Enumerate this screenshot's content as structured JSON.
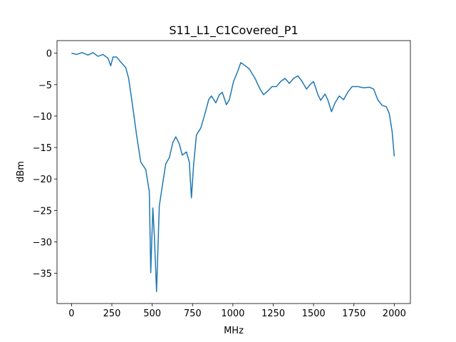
{
  "chart_data": {
    "type": "line",
    "title": "S11_L1_C1Covered_P1",
    "x_label": "MHz",
    "y_label": "dBm",
    "x": [
      0,
      31,
      66,
      102,
      133,
      164,
      195,
      226,
      243,
      257,
      279,
      305,
      336,
      354,
      376,
      403,
      429,
      460,
      482,
      491,
      504,
      513,
      527,
      544,
      562,
      584,
      606,
      628,
      646,
      668,
      686,
      712,
      730,
      743,
      757,
      774,
      801,
      827,
      850,
      867,
      894,
      916,
      934,
      960,
      978,
      1004,
      1031,
      1049,
      1066,
      1102,
      1137,
      1168,
      1190,
      1217,
      1243,
      1270,
      1296,
      1323,
      1350,
      1376,
      1403,
      1429,
      1456,
      1482,
      1500,
      1527,
      1544,
      1571,
      1588,
      1611,
      1633,
      1659,
      1686,
      1712,
      1739,
      1774,
      1810,
      1845,
      1872,
      1898,
      1925,
      1951,
      1969,
      1987,
      2000
    ],
    "series": [
      {
        "color": "#1f77b4",
        "values": [
          0,
          -0.2,
          0.1,
          -0.3,
          0.1,
          -0.5,
          -0.2,
          -0.8,
          -2.0,
          -0.6,
          -0.6,
          -1.4,
          -2.3,
          -4,
          -7.9,
          -13,
          -17.3,
          -18.5,
          -22,
          -34.9,
          -24.6,
          -28.9,
          -37.9,
          -24.3,
          -21.2,
          -17.6,
          -16.6,
          -14.2,
          -13.3,
          -14.4,
          -16.2,
          -15.7,
          -17.3,
          -23,
          -17.6,
          -13,
          -11.9,
          -9.6,
          -7.4,
          -6.8,
          -7.9,
          -6.6,
          -6.2,
          -8.2,
          -7.4,
          -4.5,
          -2.8,
          -1.5,
          -1.8,
          -2.5,
          -4,
          -5.7,
          -6.6,
          -6.0,
          -5.3,
          -5.3,
          -4.5,
          -4,
          -4.8,
          -4,
          -3.6,
          -4.5,
          -5.7,
          -4.9,
          -4.5,
          -6.6,
          -7.5,
          -6.5,
          -7.4,
          -9.3,
          -7.9,
          -6.8,
          -7.4,
          -6.2,
          -5.3,
          -5.3,
          -5.5,
          -5.4,
          -5.7,
          -7.4,
          -8.3,
          -8.5,
          -9.6,
          -12.5,
          -16.4
        ]
      }
    ],
    "xlim": [
      -90,
      2100
    ],
    "ylim": [
      -39.8,
      2.0
    ],
    "xticks": [
      0,
      250,
      500,
      750,
      1000,
      1250,
      1500,
      1750,
      2000
    ],
    "yticks": [
      {
        "value": -35,
        "label": "−35"
      },
      {
        "value": -30,
        "label": "−30"
      },
      {
        "value": -25,
        "label": "−25"
      },
      {
        "value": -20,
        "label": "−20"
      },
      {
        "value": -15,
        "label": "−15"
      },
      {
        "value": -10,
        "label": "−10"
      },
      {
        "value": -5,
        "label": "−5"
      },
      0
    ],
    "grid": false
  }
}
